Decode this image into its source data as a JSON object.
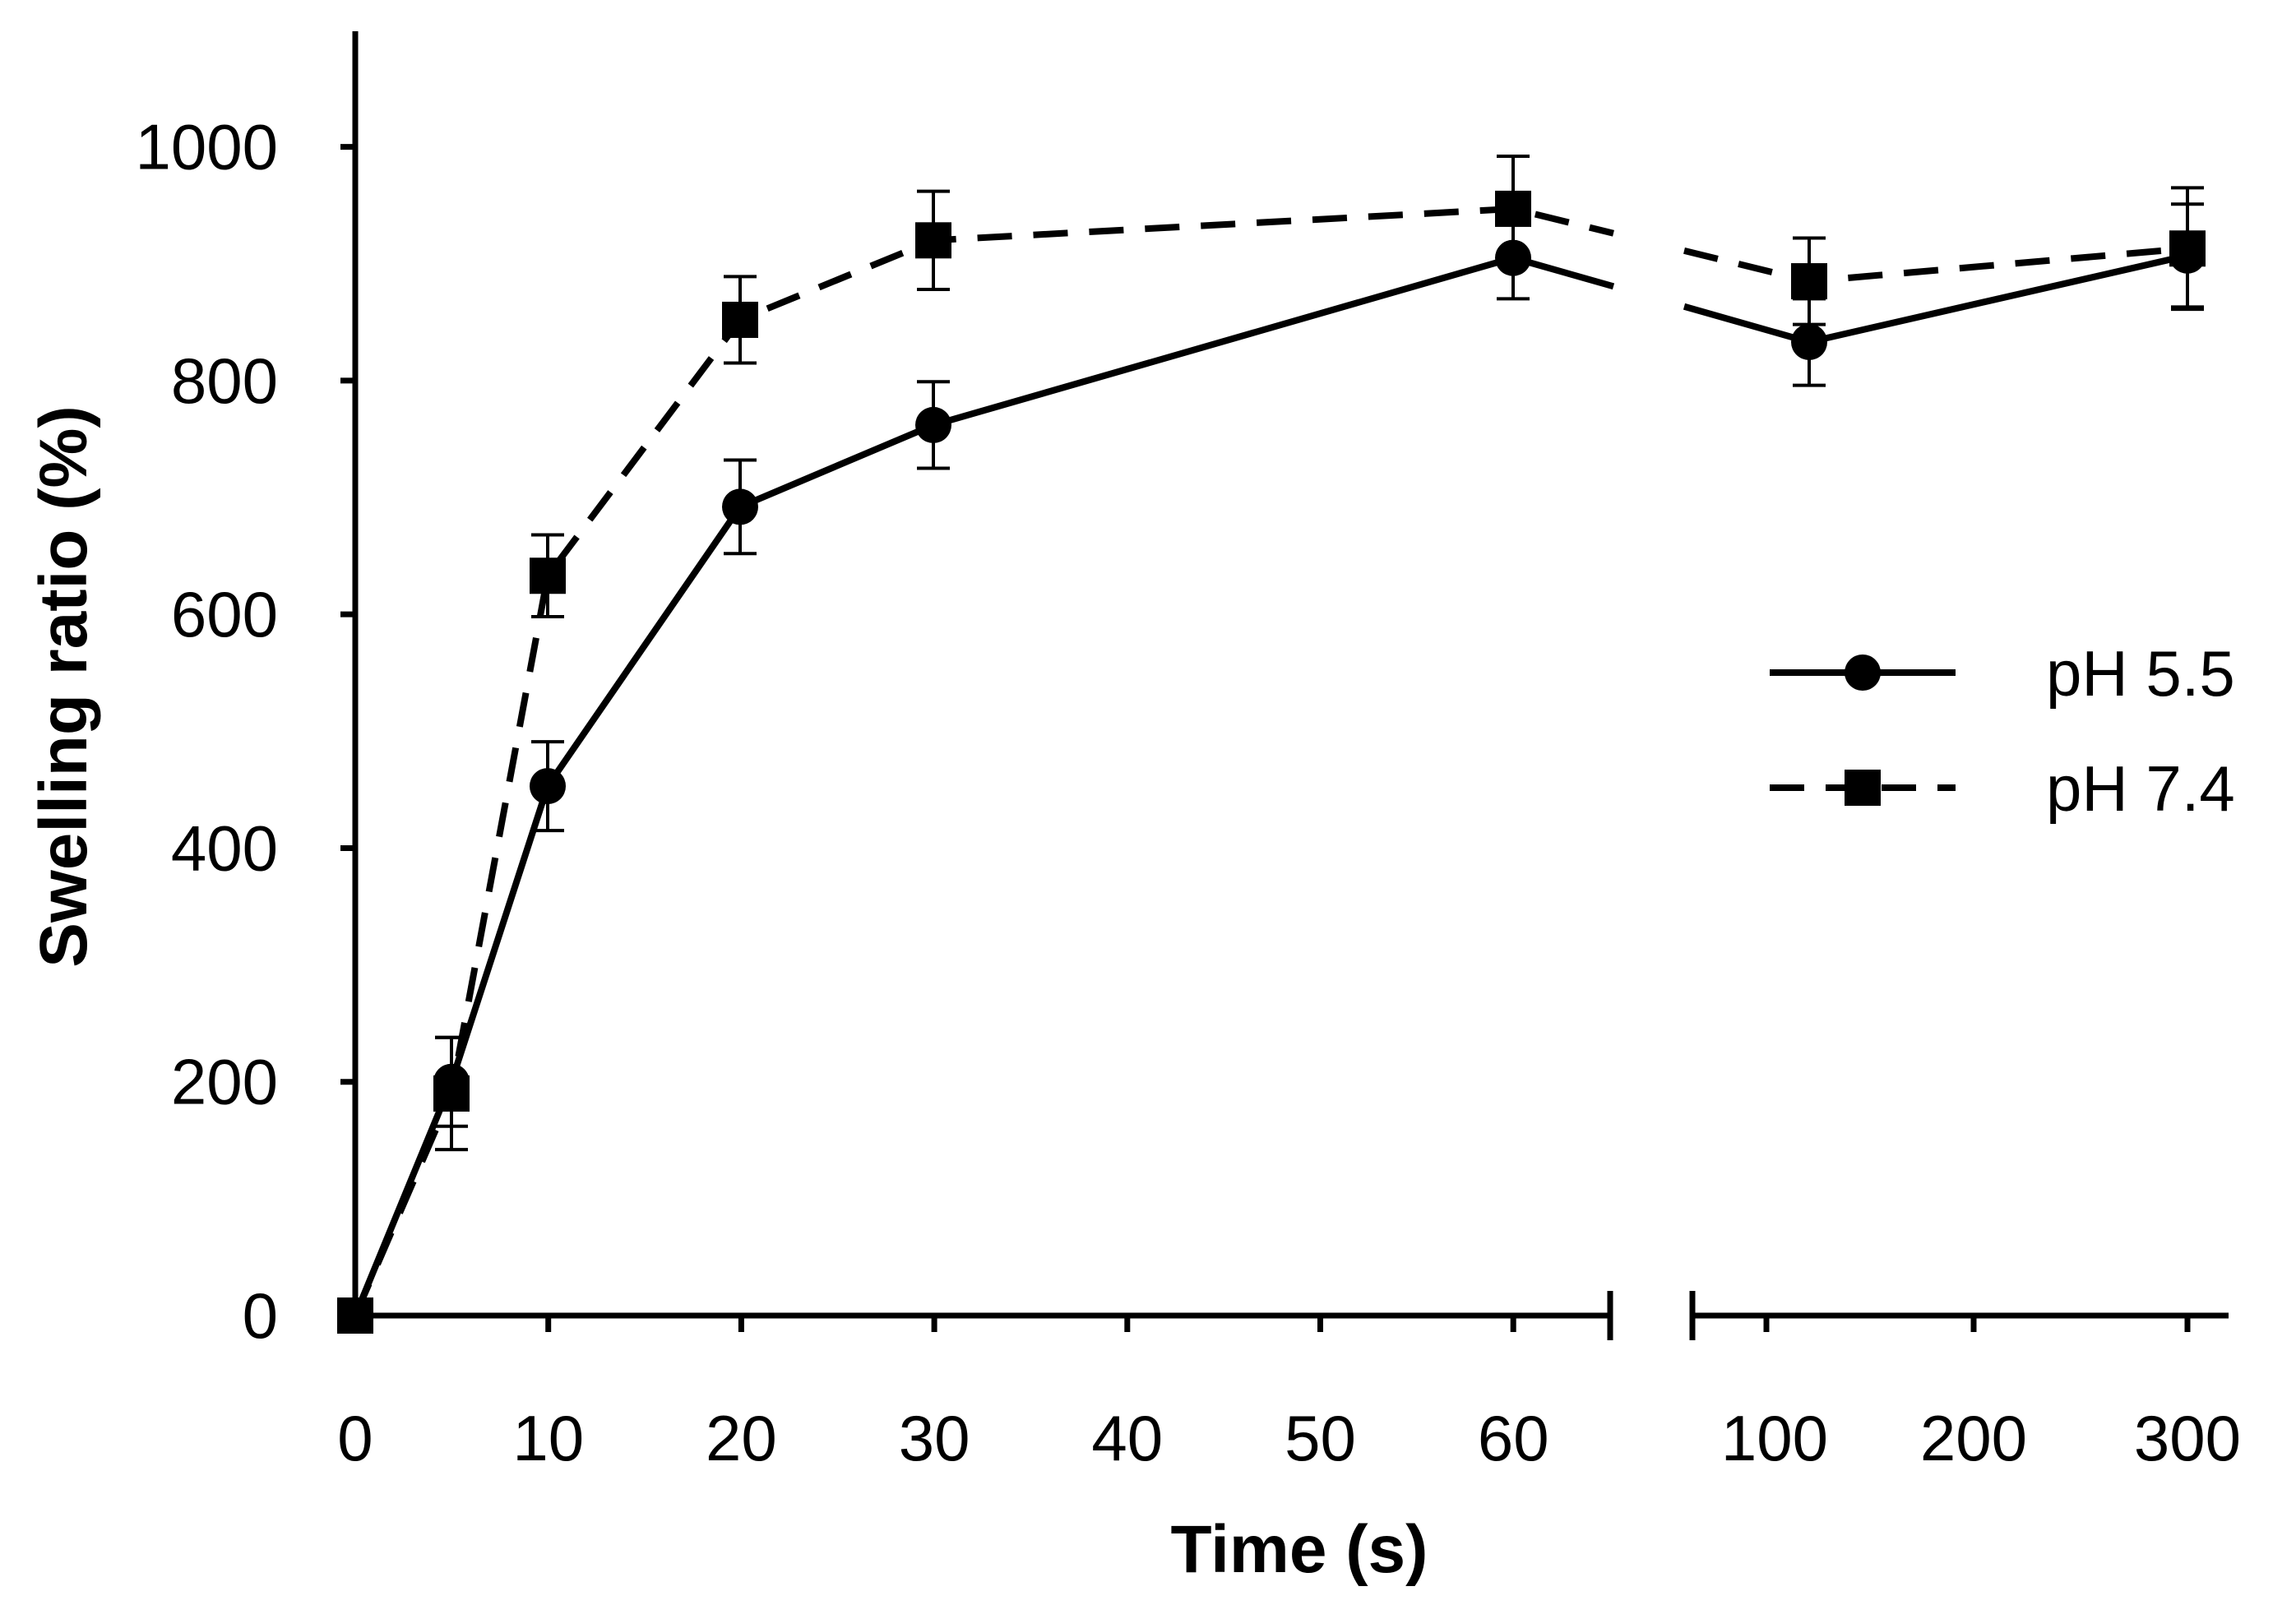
{
  "chart_data": {
    "type": "line",
    "xlabel": "Time (s)",
    "ylabel": "Swelling ratio (%)",
    "ylim": [
      0,
      1100
    ],
    "yticks": [
      0,
      200,
      400,
      600,
      800,
      1000
    ],
    "x_axis": {
      "segment1": {
        "range": [
          0,
          65
        ],
        "ticks": [
          0,
          10,
          20,
          30,
          40,
          50,
          60
        ],
        "minor_ticks": []
      },
      "segment2": {
        "range": [
          65,
          310
        ],
        "ticks": [
          100,
          200,
          300
        ],
        "minor_ticks": [
          80
        ]
      },
      "broken": true
    },
    "series": [
      {
        "name": "pH 5.5",
        "line": "solid",
        "marker": "circle",
        "x": [
          0,
          5,
          10,
          20,
          30,
          60,
          120,
          300
        ],
        "values": [
          0,
          200,
          453,
          692,
          762,
          905,
          833,
          907
        ],
        "errors": [
          0,
          38,
          38,
          40,
          37,
          35,
          37,
          44
        ]
      },
      {
        "name": "pH 7.4",
        "line": "dashed",
        "marker": "square",
        "x": [
          0,
          5,
          10,
          20,
          30,
          60,
          120,
          300
        ],
        "values": [
          0,
          190,
          633,
          852,
          920,
          947,
          885,
          913
        ],
        "errors": [
          0,
          48,
          35,
          37,
          42,
          45,
          37,
          52
        ]
      }
    ],
    "legend_position": "right"
  }
}
